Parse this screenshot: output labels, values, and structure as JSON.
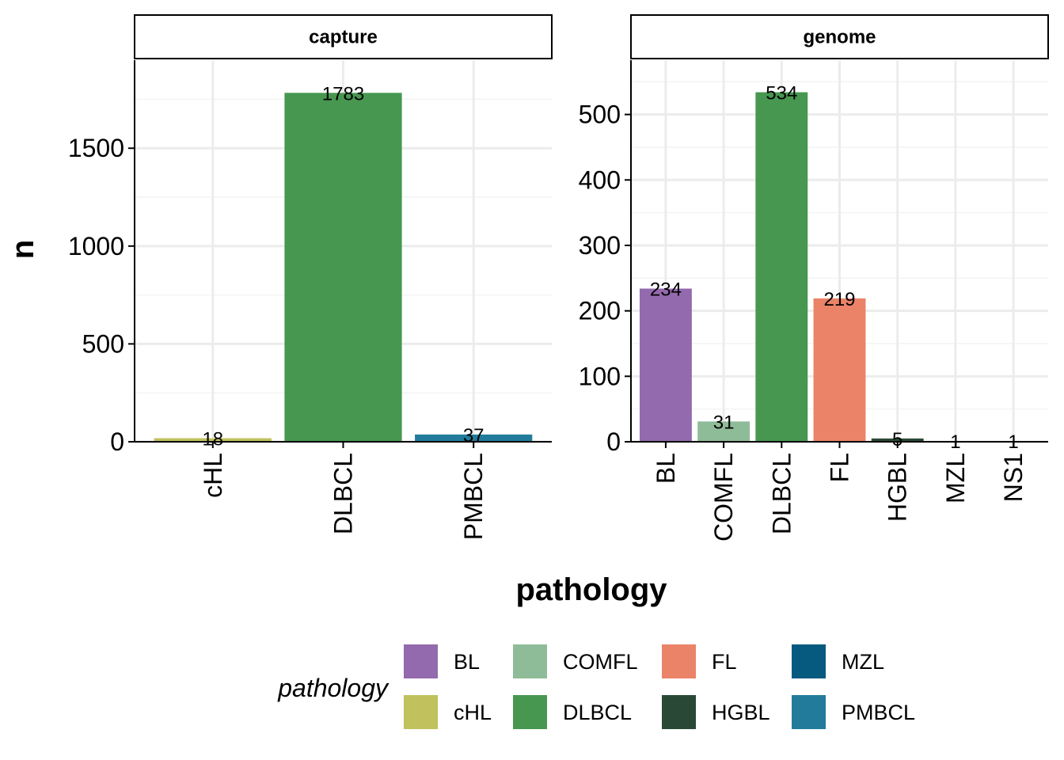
{
  "chart_data": {
    "type": "bar",
    "xlabel": "pathology",
    "ylabel": "n",
    "grid": true,
    "legend": {
      "title": "pathology",
      "position": "bottom",
      "entries": [
        {
          "label": "BL",
          "color": "#936AAD"
        },
        {
          "label": "COMFL",
          "color": "#8FBC98"
        },
        {
          "label": "FL",
          "color": "#EA8368"
        },
        {
          "label": "MZL",
          "color": "#065A7F"
        },
        {
          "label": "cHL",
          "color": "#C1C15D"
        },
        {
          "label": "DLBCL",
          "color": "#479750"
        },
        {
          "label": "HGBL",
          "color": "#294936"
        },
        {
          "label": "PMBCL",
          "color": "#227B9A"
        }
      ]
    },
    "panels": [
      {
        "strip": "capture",
        "categories": [
          "cHL",
          "DLBCL",
          "PMBCL"
        ],
        "values": [
          18,
          1783,
          37
        ],
        "colors": [
          "#C1C15D",
          "#479750",
          "#227B9A"
        ],
        "ylim": [
          0,
          1950
        ],
        "yticks": [
          0,
          500,
          1000,
          1500
        ]
      },
      {
        "strip": "genome",
        "categories": [
          "BL",
          "COMFL",
          "DLBCL",
          "FL",
          "HGBL",
          "MZL",
          "NS1"
        ],
        "values": [
          234,
          31,
          534,
          219,
          5,
          1,
          1
        ],
        "colors": [
          "#936AAD",
          "#8FBC98",
          "#479750",
          "#EA8368",
          "#294936",
          "#065A7F",
          "#888888"
        ],
        "ylim": [
          0,
          583
        ],
        "yticks": [
          0,
          100,
          200,
          300,
          400,
          500
        ]
      }
    ]
  }
}
